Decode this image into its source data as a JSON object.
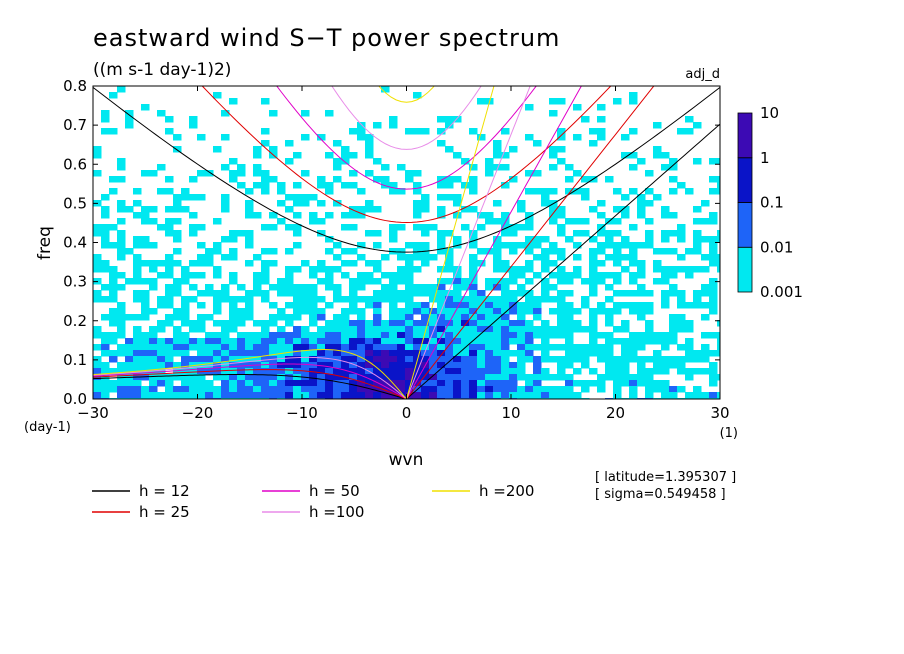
{
  "chart_data": {
    "type": "heatmap",
    "title": "eastward wind S−T power spectrum",
    "units": "((m s-1 day-1)2)",
    "dataset_label": "adj_d",
    "xlabel": "wvn",
    "ylabel": "freq",
    "x_unit": "(1)",
    "y_unit": "(day-1)",
    "xlim": [
      -30,
      30
    ],
    "ylim": [
      0,
      0.8
    ],
    "x_ticks": [
      -30,
      -20,
      -10,
      0,
      10,
      20,
      30
    ],
    "x_tick_labels": [
      "−30",
      "−20",
      "−10",
      "0",
      "10",
      "20",
      "30"
    ],
    "y_ticks": [
      0,
      0.1,
      0.2,
      0.3,
      0.4,
      0.5,
      0.6,
      0.7,
      0.8
    ],
    "y_tick_labels": [
      "0.0",
      "0.1",
      "0.2",
      "0.3",
      "0.4",
      "0.5",
      "0.6",
      "0.7",
      "0.8"
    ],
    "colorbar": {
      "levels": [
        0.001,
        0.01,
        0.1,
        1,
        10
      ],
      "labels": [
        "0.001",
        "0.01",
        "0.1",
        "1",
        "10"
      ],
      "colors": [
        "#00e8f0",
        "#1e64f8",
        "#0a14c8",
        "#3c0ab4"
      ]
    },
    "dispersion_curves": [
      {
        "name": "h = 12",
        "h": 12,
        "color": "#000000"
      },
      {
        "name": "h = 25",
        "h": 25,
        "color": "#e00000"
      },
      {
        "name": "h = 50",
        "h": 50,
        "color": "#e000c8"
      },
      {
        "name": "h =100",
        "h": 100,
        "color": "#e88ce8"
      },
      {
        "name": "h =200",
        "h": 200,
        "color": "#f0e000"
      }
    ],
    "annotations": [
      "[ latitude=1.395307 ]",
      "[ sigma=0.549458 ]"
    ]
  }
}
